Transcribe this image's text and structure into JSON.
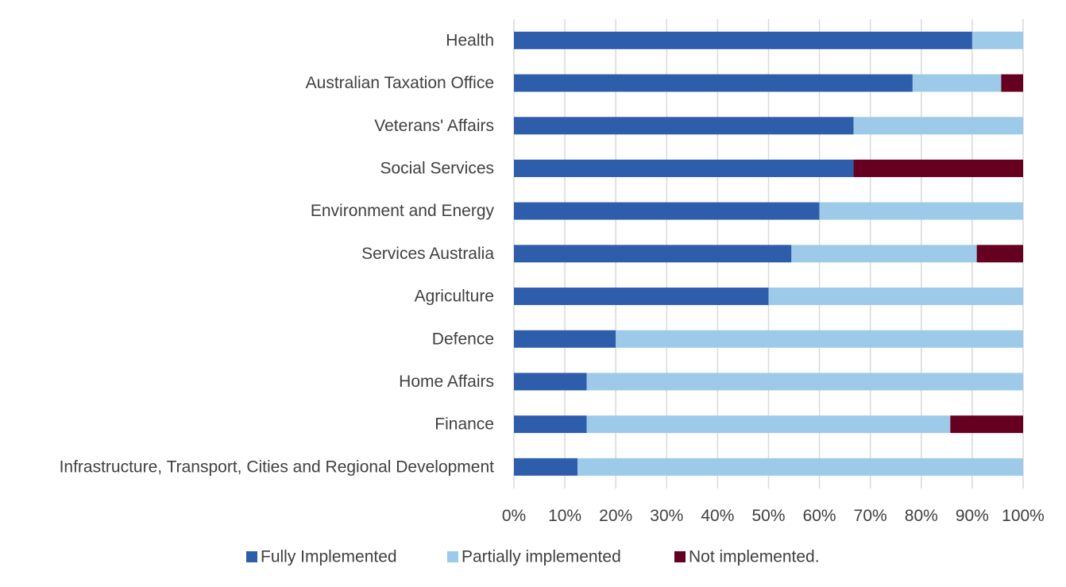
{
  "chart_data": {
    "type": "bar",
    "orientation": "horizontal",
    "stacked": true,
    "percent_stacked": true,
    "title": "",
    "xlabel": "",
    "ylabel": "",
    "xlim": [
      0,
      100
    ],
    "x_ticks": [
      "0%",
      "10%",
      "20%",
      "30%",
      "40%",
      "50%",
      "60%",
      "70%",
      "80%",
      "90%",
      "100%"
    ],
    "grid": true,
    "legend_position": "bottom",
    "categories": [
      "Health",
      "Australian Taxation Office",
      "Veterans' Affairs",
      "Social Services",
      "Environment and Energy",
      "Services Australia",
      "Agriculture",
      "Defence",
      "Home Affairs",
      "Finance",
      "Infrastructure, Transport, Cities and Regional Development"
    ],
    "series": [
      {
        "name": "Fully Implemented",
        "color": "#2e5eab",
        "values": [
          90,
          78.3,
          66.7,
          66.7,
          60,
          54.5,
          50,
          20,
          14.3,
          14.3,
          12.5
        ]
      },
      {
        "name": "Partially implemented",
        "color": "#9dcae8",
        "values": [
          10,
          17.4,
          33.3,
          0,
          40,
          36.4,
          50,
          80,
          85.7,
          71.4,
          87.5
        ]
      },
      {
        "name": "Not implemented.",
        "color": "#650021",
        "values": [
          0,
          4.3,
          0,
          33.3,
          0,
          9.1,
          0,
          0,
          0,
          14.3,
          0
        ]
      }
    ]
  }
}
